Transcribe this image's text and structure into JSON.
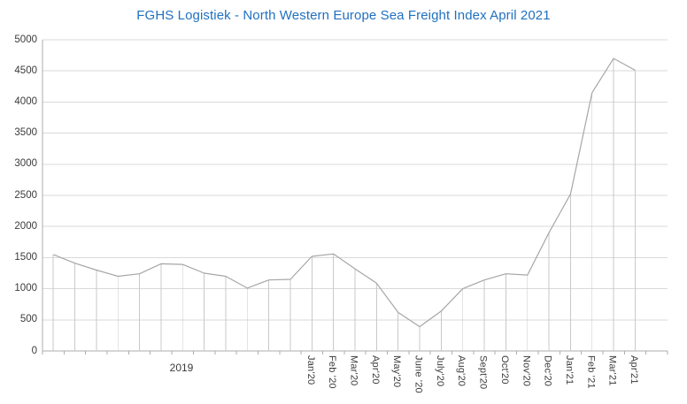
{
  "chart_data": {
    "type": "line",
    "title": "FGHS Logistiek - North Western Europe Sea Freight Index April 2021",
    "title_color": "#2171C1",
    "group_label": "2019",
    "categories": [
      "",
      "",
      "",
      "",
      "",
      "",
      "",
      "",
      "",
      "",
      "",
      "",
      "Jan'20",
      "Feb '20",
      "Mar'20",
      "Apr'20",
      "May'20",
      "June '20",
      "July'20",
      "Aug'20",
      "Sept'20",
      "Oct'20",
      "Nov'20",
      "Dec'20",
      "Jan'21",
      "Feb '21",
      "Mar'21",
      "Apr'21"
    ],
    "values": [
      1550,
      1410,
      1300,
      1200,
      1240,
      1400,
      1390,
      1250,
      1200,
      1010,
      1140,
      1150,
      1520,
      1560,
      1320,
      1090,
      620,
      390,
      640,
      1000,
      1140,
      1240,
      1220,
      1900,
      2520,
      4150,
      4700,
      4510
    ],
    "xlabel": "",
    "ylabel": "",
    "ylim": [
      0,
      5000
    ],
    "y_ticks": [
      0,
      500,
      1000,
      1500,
      2000,
      2500,
      3000,
      3500,
      4000,
      4500,
      5000
    ],
    "grid": "horizontal",
    "drop_lines": true,
    "legend": "none",
    "colors": {
      "line": "#A6A6A6",
      "drop_line": "#C9C9C9",
      "gridline": "#D9D9D9",
      "axis": "#ADADAD",
      "tick_label": "#3B3B3B"
    }
  }
}
